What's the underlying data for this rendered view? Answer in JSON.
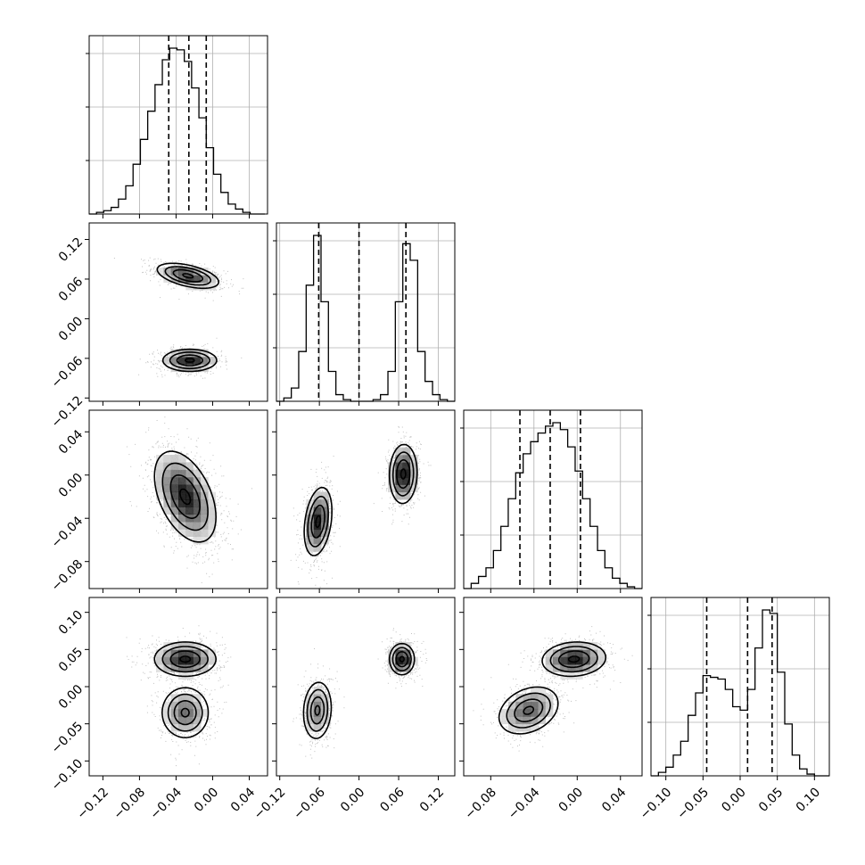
{
  "chart_data": {
    "type": "corner",
    "title": "",
    "grid": true,
    "parameters": [
      {
        "index": 0,
        "range": [
          -0.135,
          0.06
        ],
        "ticks": [
          -0.12,
          -0.08,
          -0.04,
          0.0,
          0.04
        ],
        "tick_labels": [
          "−0.12",
          "−0.08",
          "−0.04",
          "0.00",
          "0.04"
        ],
        "quantiles": [
          -0.048,
          -0.026,
          -0.007
        ]
      },
      {
        "index": 1,
        "range": [
          -0.125,
          0.145
        ],
        "ticks": [
          -0.12,
          -0.06,
          0.0,
          0.06,
          0.12
        ],
        "tick_labels": [
          "−0.12",
          "−0.06",
          "0.00",
          "0.06",
          "0.12"
        ],
        "quantiles": [
          -0.061,
          0.0,
          0.071
        ]
      },
      {
        "index": 2,
        "range": [
          -0.105,
          0.06
        ],
        "ticks": [
          -0.08,
          -0.04,
          0.0,
          0.04
        ],
        "tick_labels": [
          "−0.08",
          "−0.04",
          "0.00",
          "0.04"
        ],
        "quantiles": [
          -0.053,
          -0.025,
          0.003
        ]
      },
      {
        "index": 3,
        "range": [
          -0.12,
          0.12
        ],
        "ticks": [
          -0.1,
          -0.05,
          0.0,
          0.05,
          0.1
        ],
        "tick_labels": [
          "−0.10",
          "−0.05",
          "0.00",
          "0.05",
          "0.10"
        ],
        "quantiles": [
          -0.045,
          0.01,
          0.043
        ]
      }
    ],
    "marginals": [
      {
        "param": 0,
        "bins": [
          -0.135,
          -0.127,
          -0.119,
          -0.111,
          -0.103,
          -0.095,
          -0.087,
          -0.079,
          -0.071,
          -0.063,
          -0.055,
          -0.047,
          -0.039,
          -0.031,
          -0.023,
          -0.015,
          -0.007,
          0.001,
          0.009,
          0.017,
          0.025,
          0.033,
          0.041,
          0.049,
          0.057
        ],
        "counts": [
          0,
          1,
          2,
          4,
          9,
          17,
          30,
          45,
          62,
          78,
          93,
          100,
          99,
          92,
          76,
          58,
          40,
          24,
          13,
          6,
          3,
          1,
          0,
          0
        ]
      },
      {
        "param": 1,
        "bins": [
          -0.125,
          -0.1138,
          -0.1025,
          -0.0913,
          -0.08,
          -0.0688,
          -0.0575,
          -0.0463,
          -0.035,
          -0.0238,
          -0.0125,
          -0.0013,
          0.01,
          0.0213,
          0.0325,
          0.0438,
          0.055,
          0.0663,
          0.0775,
          0.0888,
          0.1,
          0.1113,
          0.1225,
          0.1338,
          0.145
        ],
        "counts": [
          0,
          2,
          8,
          30,
          70,
          100,
          60,
          18,
          4,
          1,
          0,
          0,
          0,
          1,
          4,
          18,
          60,
          95,
          85,
          30,
          12,
          4,
          1,
          0
        ]
      },
      {
        "param": 2,
        "bins": [
          -0.105,
          -0.0981,
          -0.0913,
          -0.0844,
          -0.0775,
          -0.0706,
          -0.0638,
          -0.0569,
          -0.05,
          -0.0431,
          -0.0363,
          -0.0294,
          -0.0225,
          -0.0156,
          -0.0088,
          -0.0019,
          0.005,
          0.0119,
          0.0188,
          0.0256,
          0.0325,
          0.0394,
          0.0463,
          0.0531,
          0.06
        ],
        "counts": [
          0,
          3,
          7,
          12,
          22,
          36,
          52,
          67,
          78,
          85,
          90,
          94,
          96,
          92,
          82,
          68,
          52,
          36,
          22,
          12,
          6,
          3,
          1,
          0
        ]
      },
      {
        "param": 3,
        "bins": [
          -0.12,
          -0.11,
          -0.1,
          -0.09,
          -0.08,
          -0.07,
          -0.06,
          -0.05,
          -0.04,
          -0.03,
          -0.02,
          -0.01,
          0.0,
          0.01,
          0.02,
          0.03,
          0.04,
          0.05,
          0.06,
          0.07,
          0.08,
          0.09,
          0.1,
          0.11,
          0.12
        ],
        "counts": [
          0,
          2,
          5,
          12,
          20,
          35,
          48,
          58,
          57,
          56,
          50,
          40,
          38,
          50,
          74,
          96,
          94,
          60,
          30,
          12,
          4,
          1,
          0,
          0
        ]
      }
    ],
    "pairs": [
      {
        "x": 0,
        "y": 1,
        "modes": [
          {
            "mean": [
              -0.027,
              0.065
            ],
            "std": [
              0.016,
              0.009
            ],
            "rho": -0.5,
            "w": 1
          },
          {
            "mean": [
              -0.025,
              -0.063
            ],
            "std": [
              0.014,
              0.008
            ],
            "rho": 0.0,
            "w": 1
          }
        ]
      },
      {
        "x": 0,
        "y": 2,
        "modes": [
          {
            "mean": [
              -0.03,
              -0.02
            ],
            "std": [
              0.016,
              0.02
            ],
            "rho": -0.45,
            "w": 1
          }
        ]
      },
      {
        "x": 1,
        "y": 2,
        "modes": [
          {
            "mean": [
              -0.062,
              -0.043
            ],
            "std": [
              0.01,
              0.015
            ],
            "rho": 0.3,
            "w": 1
          },
          {
            "mean": [
              0.067,
              0.001
            ],
            "std": [
              0.01,
              0.013
            ],
            "rho": 0.05,
            "w": 1
          }
        ]
      },
      {
        "x": 0,
        "y": 3,
        "modes": [
          {
            "mean": [
              -0.03,
              0.037
            ],
            "std": [
              0.016,
              0.011
            ],
            "rho": 0.0,
            "w": 1.2
          },
          {
            "mean": [
              -0.03,
              -0.035
            ],
            "std": [
              0.012,
              0.016
            ],
            "rho": 0.0,
            "w": 0.8
          }
        ]
      },
      {
        "x": 1,
        "y": 3,
        "modes": [
          {
            "mean": [
              -0.063,
              -0.032
            ],
            "std": [
              0.01,
              0.018
            ],
            "rho": 0.1,
            "w": 1
          },
          {
            "mean": [
              0.065,
              0.037
            ],
            "std": [
              0.009,
              0.01
            ],
            "rho": 0.0,
            "w": 1
          }
        ]
      },
      {
        "x": 2,
        "y": 3,
        "modes": [
          {
            "mean": [
              -0.003,
              0.037
            ],
            "std": [
              0.014,
              0.011
            ],
            "rho": 0.1,
            "w": 1.1
          },
          {
            "mean": [
              -0.045,
              -0.032
            ],
            "std": [
              0.013,
              0.015
            ],
            "rho": 0.3,
            "w": 0.9
          }
        ]
      }
    ],
    "contour_levels": [
      0.118,
      0.393,
      0.675,
      0.865
    ],
    "scatter_color": "#4d4d4d",
    "density_colormap": [
      "#ffffff",
      "#000000"
    ]
  }
}
